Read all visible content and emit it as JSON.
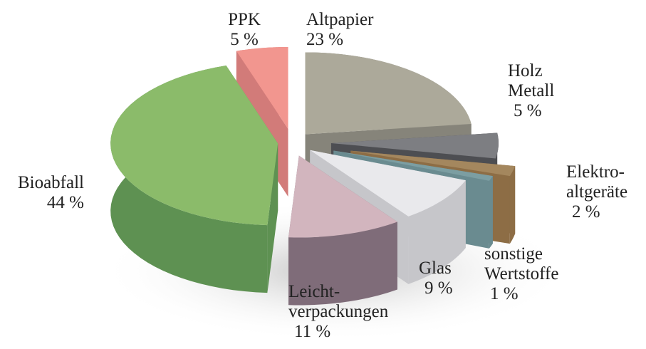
{
  "chart_data": {
    "type": "pie3d",
    "categories": [
      "PPK",
      "Altpapier",
      "Holz\nMetall",
      "Elektro-\naltgeräte",
      "sonstige\nWertstoffe",
      "Glas",
      "Leicht-\nverpackungen",
      "Bioabfall"
    ],
    "values": [
      5,
      23,
      5,
      2,
      1,
      9,
      11,
      44
    ],
    "value_labels": [
      "5 %",
      "23 %",
      "5 %",
      "2 %",
      "1 %",
      "9 %",
      "11 %",
      "44 %"
    ],
    "colors": [
      "#f2968f",
      "#aca99a",
      "#7d7e82",
      "#a4875e",
      "#7c9ea2",
      "#e9e9ec",
      "#d2b5be",
      "#8bbb6a"
    ],
    "side_colors": [
      "#d27b79",
      "#86847a",
      "#4d4e52",
      "#8d6d45",
      "#6a8b90",
      "#c6c6ca",
      "#7f6c79",
      "#5e9152"
    ]
  }
}
